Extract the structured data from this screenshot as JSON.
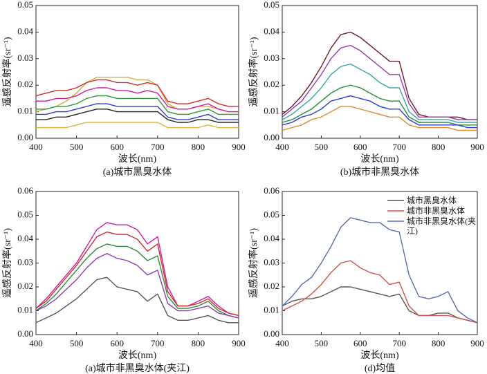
{
  "chart_data": [
    {
      "type": "line",
      "caption": "(a)城市黑臭水体",
      "xlabel": "波长(nm)",
      "ylabel": "遥感反射率(sr⁻¹)",
      "xlim": [
        400,
        900
      ],
      "xticks": [
        400,
        500,
        600,
        700,
        800,
        900
      ],
      "ylim": [
        0,
        0.05
      ],
      "yticks": [
        {
          "value": 0,
          "label": "0.00"
        },
        0.01,
        0.02,
        0.03,
        0.04,
        0.05
      ],
      "x": [
        400,
        425,
        450,
        475,
        500,
        525,
        550,
        575,
        600,
        625,
        650,
        675,
        700,
        725,
        750,
        775,
        800,
        825,
        850,
        875,
        900
      ],
      "series": [
        {
          "color": "#d4b030",
          "values": [
            0.01,
            0.011,
            0.012,
            0.014,
            0.017,
            0.021,
            0.023,
            0.023,
            0.023,
            0.023,
            0.022,
            0.022,
            0.02,
            0.013,
            0.011,
            0.011,
            0.012,
            0.012,
            0.011,
            0.01,
            0.01
          ]
        },
        {
          "color": "#d42a2a",
          "values": [
            0.016,
            0.017,
            0.018,
            0.018,
            0.019,
            0.021,
            0.022,
            0.022,
            0.021,
            0.021,
            0.02,
            0.021,
            0.02,
            0.014,
            0.013,
            0.013,
            0.014,
            0.015,
            0.013,
            0.012,
            0.012
          ]
        },
        {
          "color": "#d41aa0",
          "values": [
            0.014,
            0.014,
            0.015,
            0.015,
            0.016,
            0.018,
            0.019,
            0.019,
            0.018,
            0.018,
            0.017,
            0.018,
            0.017,
            0.012,
            0.011,
            0.011,
            0.012,
            0.013,
            0.011,
            0.01,
            0.01
          ]
        },
        {
          "color": "#2a9a3a",
          "values": [
            0.011,
            0.011,
            0.012,
            0.012,
            0.013,
            0.015,
            0.016,
            0.016,
            0.015,
            0.015,
            0.015,
            0.015,
            0.015,
            0.01,
            0.009,
            0.009,
            0.01,
            0.011,
            0.009,
            0.009,
            0.009
          ]
        },
        {
          "color": "#2a3ad4",
          "values": [
            0.009,
            0.009,
            0.01,
            0.01,
            0.011,
            0.012,
            0.013,
            0.013,
            0.012,
            0.012,
            0.012,
            0.012,
            0.012,
            0.008,
            0.007,
            0.007,
            0.008,
            0.009,
            0.007,
            0.007,
            0.007
          ]
        },
        {
          "color": "#222222",
          "values": [
            0.007,
            0.007,
            0.008,
            0.008,
            0.009,
            0.01,
            0.011,
            0.011,
            0.01,
            0.01,
            0.01,
            0.01,
            0.01,
            0.007,
            0.006,
            0.006,
            0.007,
            0.007,
            0.006,
            0.006,
            0.006
          ]
        },
        {
          "color": "#e0b040",
          "values": [
            0.004,
            0.004,
            0.004,
            0.004,
            0.005,
            0.006,
            0.006,
            0.006,
            0.006,
            0.006,
            0.006,
            0.006,
            0.006,
            0.004,
            0.004,
            0.004,
            0.004,
            0.005,
            0.004,
            0.004,
            0.004
          ]
        }
      ]
    },
    {
      "type": "line",
      "caption": "(b)城市非黑臭水体",
      "xlabel": "波长(nm)",
      "ylabel": "遥感反射率(sr⁻¹)",
      "xlim": [
        400,
        900
      ],
      "xticks": [
        400,
        500,
        600,
        700,
        800,
        900
      ],
      "ylim": [
        0,
        0.05
      ],
      "yticks": [
        {
          "value": 0,
          "label": "0.00"
        },
        0.01,
        0.02,
        0.03,
        0.04,
        0.05
      ],
      "x": [
        400,
        425,
        450,
        475,
        500,
        525,
        550,
        575,
        600,
        625,
        650,
        675,
        700,
        725,
        750,
        775,
        800,
        825,
        850,
        875,
        900
      ],
      "series": [
        {
          "color": "#6a1a2a",
          "values": [
            0.009,
            0.012,
            0.016,
            0.021,
            0.027,
            0.034,
            0.039,
            0.04,
            0.038,
            0.035,
            0.032,
            0.029,
            0.029,
            0.015,
            0.009,
            0.008,
            0.008,
            0.008,
            0.008,
            0.007,
            0.007
          ]
        },
        {
          "color": "#9a3ab4",
          "values": [
            0.008,
            0.011,
            0.014,
            0.019,
            0.024,
            0.03,
            0.034,
            0.035,
            0.033,
            0.03,
            0.027,
            0.024,
            0.024,
            0.013,
            0.008,
            0.008,
            0.008,
            0.008,
            0.007,
            0.007,
            0.007
          ]
        },
        {
          "color": "#3aa8a0",
          "values": [
            0.007,
            0.009,
            0.012,
            0.015,
            0.019,
            0.024,
            0.027,
            0.028,
            0.026,
            0.024,
            0.021,
            0.019,
            0.019,
            0.01,
            0.007,
            0.007,
            0.007,
            0.007,
            0.006,
            0.006,
            0.006
          ]
        },
        {
          "color": "#2a8a3a",
          "values": [
            0.006,
            0.007,
            0.009,
            0.011,
            0.014,
            0.017,
            0.019,
            0.02,
            0.019,
            0.017,
            0.015,
            0.014,
            0.014,
            0.008,
            0.006,
            0.006,
            0.006,
            0.006,
            0.005,
            0.005,
            0.005
          ]
        },
        {
          "color": "#2a3ad4",
          "values": [
            0.005,
            0.006,
            0.008,
            0.009,
            0.011,
            0.014,
            0.015,
            0.016,
            0.015,
            0.014,
            0.012,
            0.011,
            0.011,
            0.007,
            0.005,
            0.005,
            0.005,
            0.005,
            0.005,
            0.004,
            0.004
          ]
        },
        {
          "color": "#e08a30",
          "values": [
            0.003,
            0.004,
            0.005,
            0.007,
            0.008,
            0.01,
            0.012,
            0.012,
            0.011,
            0.01,
            0.009,
            0.008,
            0.008,
            0.005,
            0.004,
            0.004,
            0.004,
            0.004,
            0.003,
            0.003,
            0.003
          ]
        }
      ]
    },
    {
      "type": "line",
      "caption": "(a)城市非黑臭水体(夹江)",
      "xlabel": "波长(nm)",
      "ylabel": "遥感反射率(sr⁻¹)",
      "xlim": [
        400,
        900
      ],
      "xticks": [
        400,
        500,
        600,
        700,
        800,
        900
      ],
      "ylim": [
        0,
        0.06
      ],
      "yticks": [
        {
          "value": 0,
          "label": "0.00"
        },
        0.01,
        0.02,
        0.03,
        0.04,
        0.05,
        0.06
      ],
      "x": [
        400,
        425,
        450,
        475,
        500,
        525,
        550,
        575,
        600,
        625,
        650,
        675,
        700,
        725,
        750,
        775,
        800,
        825,
        850,
        875,
        900
      ],
      "series": [
        {
          "color": "#d41aa0",
          "values": [
            0.011,
            0.015,
            0.02,
            0.025,
            0.03,
            0.037,
            0.044,
            0.047,
            0.046,
            0.046,
            0.044,
            0.038,
            0.041,
            0.02,
            0.012,
            0.012,
            0.014,
            0.016,
            0.012,
            0.009,
            0.008
          ]
        },
        {
          "color": "#d42a2a",
          "values": [
            0.011,
            0.014,
            0.019,
            0.024,
            0.029,
            0.035,
            0.041,
            0.043,
            0.042,
            0.042,
            0.04,
            0.035,
            0.038,
            0.018,
            0.012,
            0.012,
            0.013,
            0.015,
            0.011,
            0.009,
            0.008
          ]
        },
        {
          "color": "#2a8a3a",
          "values": [
            0.01,
            0.013,
            0.017,
            0.022,
            0.027,
            0.032,
            0.036,
            0.038,
            0.037,
            0.037,
            0.035,
            0.031,
            0.033,
            0.016,
            0.011,
            0.011,
            0.012,
            0.014,
            0.01,
            0.008,
            0.007
          ]
        },
        {
          "color": "#8a3ab4",
          "values": [
            0.01,
            0.012,
            0.015,
            0.019,
            0.023,
            0.028,
            0.032,
            0.034,
            0.032,
            0.031,
            0.029,
            0.025,
            0.027,
            0.013,
            0.01,
            0.01,
            0.011,
            0.012,
            0.009,
            0.008,
            0.007
          ]
        },
        {
          "color": "#555555",
          "values": [
            0.005,
            0.007,
            0.009,
            0.012,
            0.015,
            0.019,
            0.023,
            0.024,
            0.02,
            0.019,
            0.018,
            0.014,
            0.017,
            0.008,
            0.006,
            0.006,
            0.007,
            0.008,
            0.006,
            0.005,
            0.005
          ]
        }
      ]
    },
    {
      "type": "line",
      "caption": "(d)均值",
      "xlabel": "波长(nm)",
      "ylabel": "遥感反射率(sr⁻¹)",
      "xlim": [
        400,
        900
      ],
      "xticks": [
        400,
        500,
        600,
        700,
        800,
        900
      ],
      "ylim": [
        0,
        0.06
      ],
      "yticks": [
        {
          "value": 0,
          "label": "0.00"
        },
        0.01,
        0.02,
        0.03,
        0.04,
        0.05,
        0.06
      ],
      "legend": "upper right",
      "x": [
        400,
        425,
        450,
        475,
        500,
        525,
        550,
        575,
        600,
        625,
        650,
        675,
        700,
        725,
        750,
        775,
        800,
        825,
        850,
        875,
        900
      ],
      "series": [
        {
          "name": "城市黑臭水体",
          "color": "#555555",
          "values": [
            0.012,
            0.014,
            0.015,
            0.015,
            0.016,
            0.018,
            0.02,
            0.02,
            0.019,
            0.018,
            0.017,
            0.016,
            0.017,
            0.01,
            0.008,
            0.008,
            0.009,
            0.009,
            0.007,
            0.006,
            0.005
          ]
        },
        {
          "name": "城市非黑臭水体",
          "color": "#d0504a",
          "values": [
            0.01,
            0.012,
            0.014,
            0.017,
            0.021,
            0.026,
            0.03,
            0.031,
            0.028,
            0.026,
            0.025,
            0.021,
            0.022,
            0.012,
            0.008,
            0.008,
            0.008,
            0.008,
            0.007,
            0.006,
            0.005
          ]
        },
        {
          "name": "城市非黑臭水体(夹江)",
          "color": "#5a6ab4",
          "values": [
            0.012,
            0.016,
            0.021,
            0.024,
            0.03,
            0.037,
            0.045,
            0.049,
            0.048,
            0.047,
            0.047,
            0.044,
            0.043,
            0.025,
            0.016,
            0.015,
            0.016,
            0.018,
            0.01,
            0.007,
            0.005
          ]
        }
      ]
    }
  ]
}
